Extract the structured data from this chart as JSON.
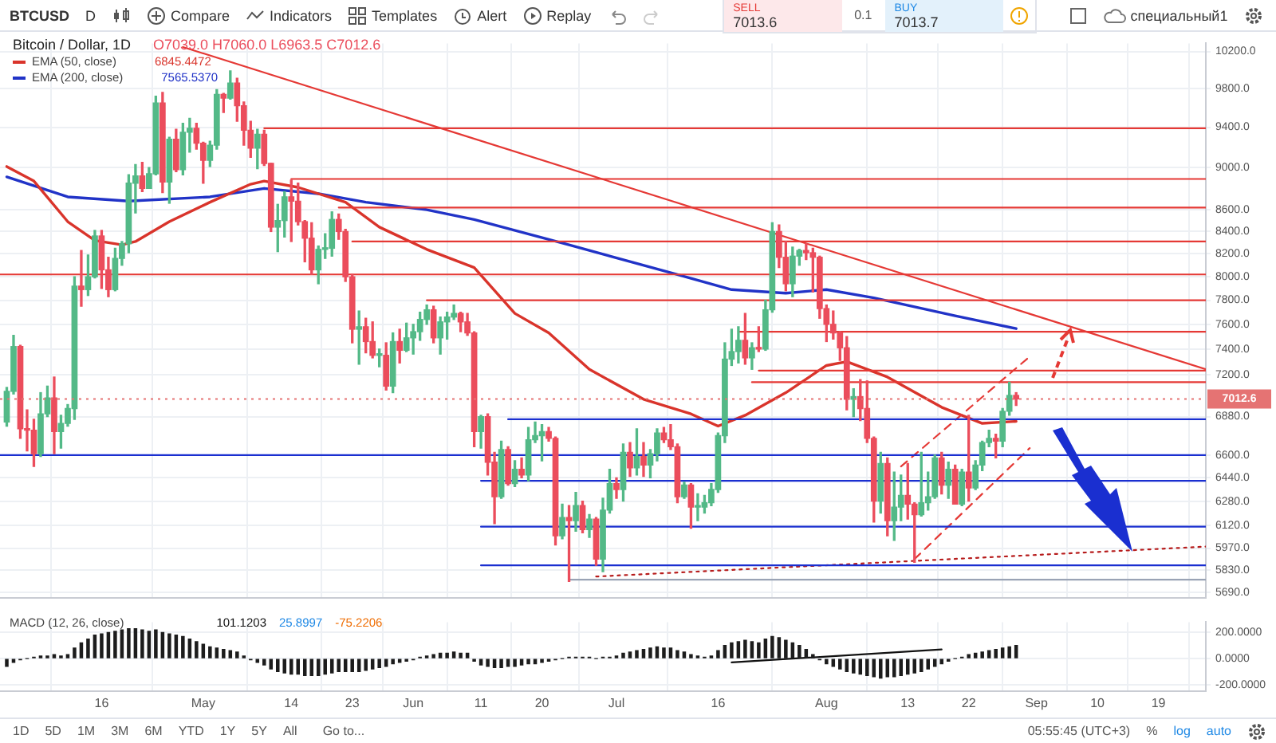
{
  "chart_data": [
    {
      "type": "candlestick",
      "title": "Bitcoin / Dollar, 1D",
      "subtitle": "O7039.0 H7060.0 L6963.5 C7012.6",
      "x": [
        "--04-02",
        "--04-03",
        "--04-04",
        "--04-05",
        "--04-06",
        "--04-07",
        "--04-08",
        "--04-09",
        "--04-10",
        "--04-11",
        "--04-12",
        "--04-13",
        "--04-14",
        "--04-15",
        "--04-16",
        "--04-17",
        "--04-18",
        "--04-19",
        "--04-20",
        "--04-21",
        "--04-22",
        "--04-23",
        "--04-24",
        "--04-25",
        "--04-26",
        "--04-27",
        "--04-28",
        "--04-29",
        "--04-30",
        "--05-01",
        "--05-02",
        "--05-03",
        "--05-04",
        "--05-05",
        "--05-06",
        "--05-07",
        "--05-08",
        "--05-09",
        "--05-10",
        "--05-11",
        "--05-12",
        "--05-13",
        "--05-14",
        "--05-15",
        "--05-16",
        "--05-17",
        "--05-18",
        "--05-19",
        "--05-20",
        "--05-21",
        "--05-22",
        "--05-23",
        "--05-24",
        "--05-25",
        "--05-26",
        "--05-27",
        "--05-28",
        "--05-29",
        "--05-30",
        "--05-31",
        "--06-01",
        "--06-02",
        "--06-03",
        "--06-04",
        "--06-05",
        "--06-06",
        "--06-07",
        "--06-08",
        "--06-09",
        "--06-10",
        "--06-11",
        "--06-12",
        "--06-13",
        "--06-14",
        "--06-15",
        "--06-16",
        "--06-17",
        "--06-18",
        "--06-19",
        "--06-20",
        "--06-21",
        "--06-22",
        "--06-23",
        "--06-24",
        "--06-25",
        "--06-26",
        "--06-27",
        "--06-28",
        "--06-29",
        "--06-30",
        "--07-01",
        "--07-02",
        "--07-03",
        "--07-04",
        "--07-05",
        "--07-06",
        "--07-07",
        "--07-08",
        "--07-09",
        "--07-10",
        "--07-11",
        "--07-12",
        "--07-13",
        "--07-14",
        "--07-15",
        "--07-16",
        "--07-17",
        "--07-18",
        "--07-19",
        "--07-20",
        "--07-21",
        "--07-22",
        "--07-23",
        "--07-24",
        "--07-25",
        "--07-26",
        "--07-27",
        "--07-28",
        "--07-29",
        "--07-30",
        "--07-31",
        "--08-01",
        "--08-02",
        "--08-03",
        "--08-04",
        "--08-05",
        "--08-06",
        "--08-07",
        "--08-08",
        "--08-09",
        "--08-10",
        "--08-11",
        "--08-12",
        "--08-13",
        "--08-14",
        "--08-15",
        "--08-16",
        "--08-17",
        "--08-18",
        "--08-19",
        "--08-20",
        "--08-21",
        "--08-22",
        "--08-23",
        "--08-24",
        "--08-25",
        "--08-26",
        "--08-27",
        "--08-28",
        "--08-29"
      ],
      "ohlc": [
        [
          6840,
          7100,
          6810,
          7070
        ],
        [
          7070,
          7510,
          7050,
          7420
        ],
        [
          7420,
          7430,
          6720,
          6790
        ],
        [
          6790,
          6930,
          6630,
          6780
        ],
        [
          6780,
          6860,
          6520,
          6610
        ],
        [
          6610,
          7060,
          6590,
          6900
        ],
        [
          6900,
          7110,
          6880,
          7020
        ],
        [
          7020,
          7180,
          6610,
          6770
        ],
        [
          6770,
          6890,
          6650,
          6830
        ],
        [
          6830,
          6970,
          6810,
          6940
        ],
        [
          6940,
          8000,
          6860,
          7920
        ],
        [
          7920,
          8230,
          7750,
          7890
        ],
        [
          7890,
          8190,
          7840,
          8000
        ],
        [
          8000,
          8410,
          7990,
          8360
        ],
        [
          8360,
          8410,
          7900,
          8060
        ],
        [
          8060,
          8170,
          7830,
          7890
        ],
        [
          7890,
          8250,
          7880,
          8160
        ],
        [
          8160,
          8310,
          8100,
          8290
        ],
        [
          8290,
          8930,
          8210,
          8850
        ],
        [
          8850,
          9030,
          8570,
          8920
        ],
        [
          8920,
          9050,
          8770,
          8800
        ],
        [
          8800,
          9000,
          8800,
          8940
        ],
        [
          8940,
          9720,
          8930,
          9650
        ],
        [
          9650,
          9760,
          8760,
          8860
        ],
        [
          8860,
          9300,
          8660,
          9280
        ],
        [
          9280,
          9380,
          8960,
          8980
        ],
        [
          8980,
          9440,
          8930,
          9350
        ],
        [
          9350,
          9490,
          9150,
          9390
        ],
        [
          9390,
          9440,
          9180,
          9240
        ],
        [
          9240,
          9250,
          8850,
          9070
        ],
        [
          9070,
          9260,
          9010,
          9220
        ],
        [
          9220,
          9790,
          9180,
          9740
        ],
        [
          9740,
          9750,
          9550,
          9700
        ],
        [
          9700,
          9990,
          9690,
          9860
        ],
        [
          9860,
          9910,
          9460,
          9620
        ],
        [
          9620,
          9660,
          9220,
          9370
        ],
        [
          9370,
          9460,
          9100,
          9190
        ],
        [
          9190,
          9380,
          8990,
          9330
        ],
        [
          9330,
          9370,
          9020,
          9040
        ],
        [
          9040,
          9040,
          8400,
          8440
        ],
        [
          8440,
          8650,
          8220,
          8500
        ],
        [
          8500,
          8770,
          8350,
          8720
        ],
        [
          8720,
          8880,
          8310,
          8680
        ],
        [
          8680,
          8850,
          8460,
          8490
        ],
        [
          8490,
          8500,
          8130,
          8340
        ],
        [
          8340,
          8480,
          8020,
          8060
        ],
        [
          8060,
          8270,
          7940,
          8240
        ],
        [
          8240,
          8380,
          8160,
          8250
        ],
        [
          8250,
          8580,
          8180,
          8510
        ],
        [
          8510,
          8560,
          8330,
          8400
        ],
        [
          8400,
          8420,
          7960,
          8000
        ],
        [
          8000,
          8020,
          7450,
          7560
        ],
        [
          7560,
          7710,
          7280,
          7580
        ],
        [
          7580,
          7650,
          7370,
          7460
        ],
        [
          7460,
          7620,
          7330,
          7350
        ],
        [
          7350,
          7400,
          7260,
          7350
        ],
        [
          7350,
          7450,
          7080,
          7110
        ],
        [
          7110,
          7530,
          7060,
          7460
        ],
        [
          7460,
          7560,
          7290,
          7390
        ],
        [
          7390,
          7610,
          7380,
          7490
        ],
        [
          7490,
          7600,
          7360,
          7540
        ],
        [
          7540,
          7700,
          7470,
          7640
        ],
        [
          7640,
          7760,
          7600,
          7720
        ],
        [
          7720,
          7750,
          7450,
          7490
        ],
        [
          7490,
          7660,
          7360,
          7620
        ],
        [
          7620,
          7700,
          7480,
          7660
        ],
        [
          7660,
          7760,
          7640,
          7690
        ],
        [
          7690,
          7700,
          7540,
          7620
        ],
        [
          7620,
          7690,
          7510,
          7530
        ],
        [
          7530,
          7540,
          6660,
          6770
        ],
        [
          6770,
          6890,
          6650,
          6880
        ],
        [
          6880,
          6900,
          6460,
          6550
        ],
        [
          6550,
          6620,
          6130,
          6310
        ],
        [
          6310,
          6700,
          6300,
          6640
        ],
        [
          6640,
          6660,
          6390,
          6400
        ],
        [
          6400,
          6560,
          6380,
          6500
        ],
        [
          6500,
          6580,
          6440,
          6460
        ],
        [
          6460,
          6800,
          6420,
          6710
        ],
        [
          6710,
          6840,
          6690,
          6740
        ],
        [
          6740,
          6820,
          6560,
          6770
        ],
        [
          6770,
          6800,
          6700,
          6720
        ],
        [
          6720,
          6730,
          5990,
          6050
        ],
        [
          6050,
          6260,
          6030,
          6170
        ],
        [
          6170,
          6250,
          5760,
          6150
        ],
        [
          6150,
          6340,
          6080,
          6250
        ],
        [
          6250,
          6280,
          6070,
          6090
        ],
        [
          6090,
          6190,
          6040,
          6160
        ],
        [
          6160,
          6170,
          5860,
          5900
        ],
        [
          5900,
          6300,
          5820,
          6220
        ],
        [
          6220,
          6500,
          6200,
          6400
        ],
        [
          6400,
          6440,
          6300,
          6360
        ],
        [
          6360,
          6680,
          6280,
          6620
        ],
        [
          6620,
          6690,
          6450,
          6510
        ],
        [
          6510,
          6790,
          6460,
          6590
        ],
        [
          6590,
          6690,
          6450,
          6530
        ],
        [
          6530,
          6640,
          6440,
          6610
        ],
        [
          6610,
          6790,
          6560,
          6760
        ],
        [
          6760,
          6800,
          6690,
          6710
        ],
        [
          6710,
          6820,
          6640,
          6660
        ],
        [
          6660,
          6680,
          6270,
          6310
        ],
        [
          6310,
          6410,
          6300,
          6390
        ],
        [
          6390,
          6400,
          6100,
          6240
        ],
        [
          6240,
          6330,
          6150,
          6240
        ],
        [
          6240,
          6320,
          6200,
          6270
        ],
        [
          6270,
          6400,
          6250,
          6360
        ],
        [
          6360,
          6760,
          6340,
          6740
        ],
        [
          6740,
          7450,
          6690,
          7320
        ],
        [
          7320,
          7560,
          7270,
          7380
        ],
        [
          7380,
          7580,
          7290,
          7470
        ],
        [
          7470,
          7690,
          7280,
          7330
        ],
        [
          7330,
          7450,
          7240,
          7410
        ],
        [
          7410,
          7580,
          7380,
          7400
        ],
        [
          7400,
          7800,
          7390,
          7720
        ],
        [
          7720,
          8480,
          7700,
          8400
        ],
        [
          8400,
          8460,
          8080,
          8170
        ],
        [
          8170,
          8310,
          7880,
          7940
        ],
        [
          7940,
          8260,
          7830,
          8180
        ],
        [
          8180,
          8240,
          8100,
          8230
        ],
        [
          8230,
          8290,
          8150,
          8210
        ],
        [
          8210,
          8250,
          7870,
          8170
        ],
        [
          8170,
          8180,
          7650,
          7730
        ],
        [
          7730,
          7760,
          7460,
          7600
        ],
        [
          7600,
          7710,
          7480,
          7530
        ],
        [
          7530,
          7540,
          7310,
          7410
        ],
        [
          7410,
          7500,
          6930,
          7010
        ],
        [
          7010,
          7090,
          6880,
          7030
        ],
        [
          7030,
          7160,
          6850,
          6940
        ],
        [
          6940,
          7150,
          6690,
          6720
        ],
        [
          6720,
          6730,
          6140,
          6280
        ],
        [
          6280,
          6620,
          6200,
          6540
        ],
        [
          6540,
          6580,
          6050,
          6150
        ],
        [
          6150,
          6480,
          6020,
          6240
        ],
        [
          6240,
          6460,
          6150,
          6320
        ],
        [
          6320,
          6540,
          6160,
          6260
        ],
        [
          6260,
          6270,
          5880,
          6190
        ],
        [
          6190,
          6620,
          6180,
          6270
        ],
        [
          6270,
          6480,
          6220,
          6310
        ],
        [
          6310,
          6600,
          6300,
          6580
        ],
        [
          6580,
          6620,
          6330,
          6390
        ],
        [
          6390,
          6550,
          6300,
          6500
        ],
        [
          6500,
          6530,
          6260,
          6260
        ],
        [
          6260,
          6500,
          6250,
          6480
        ],
        [
          6480,
          6890,
          6280,
          6370
        ],
        [
          6370,
          6560,
          6360,
          6530
        ],
        [
          6530,
          6700,
          6490,
          6690
        ],
        [
          6690,
          6780,
          6660,
          6720
        ],
        [
          6720,
          6750,
          6580,
          6700
        ],
        [
          6700,
          6940,
          6660,
          6920
        ],
        [
          6920,
          7140,
          6890,
          7039
        ],
        [
          7039,
          7060,
          6963.5,
          7012.6
        ]
      ],
      "series": [
        {
          "type": "line",
          "x": [
            "--04-01",
            "--09-26"
          ],
          "values": [
            8020,
            8020
          ],
          "color": "#e53935"
        },
        {
          "type": "line",
          "x": [
            "--05-10",
            "--09-26"
          ],
          "values": [
            9390,
            9390
          ],
          "color": "#e53935"
        },
        {
          "type": "line",
          "x": [
            "--05-14",
            "--09-26"
          ],
          "values": [
            8890,
            8890
          ],
          "color": "#e53935"
        },
        {
          "type": "line",
          "x": [
            "--05-21",
            "--09-26"
          ],
          "values": [
            8620,
            8620
          ],
          "color": "#e53935"
        },
        {
          "type": "line",
          "x": [
            "--05-23",
            "--09-26"
          ],
          "values": [
            8310,
            8310
          ],
          "color": "#e53935"
        },
        {
          "type": "line",
          "x": [
            "--06-03",
            "--09-26"
          ],
          "values": [
            7800,
            7800
          ],
          "color": "#e53935"
        },
        {
          "type": "line",
          "x": [
            "--07-19",
            "--09-26"
          ],
          "values": [
            7540,
            7540
          ],
          "color": "#e53935"
        },
        {
          "type": "line",
          "x": [
            "--07-22",
            "--09-26"
          ],
          "values": [
            7230,
            7230
          ],
          "color": "#e53935"
        },
        {
          "type": "line",
          "x": [
            "--07-21",
            "--09-26"
          ],
          "values": [
            7140,
            7140
          ],
          "color": "#e53935"
        },
        {
          "type": "line",
          "x": [
            "--06-15",
            "--09-26"
          ],
          "values": [
            6860,
            6860
          ],
          "color": "#1a2fd0"
        },
        {
          "type": "line",
          "x": [
            "--04-01",
            "--09-26"
          ],
          "values": [
            6600,
            6600
          ],
          "color": "#1a2fd0"
        },
        {
          "type": "line",
          "x": [
            "--06-11",
            "--09-26"
          ],
          "values": [
            6420,
            6420
          ],
          "color": "#1a2fd0"
        },
        {
          "type": "line",
          "x": [
            "--06-11",
            "--09-26"
          ],
          "values": [
            6110,
            6110
          ],
          "color": "#1a2fd0"
        },
        {
          "type": "line",
          "x": [
            "--06-11",
            "--09-26"
          ],
          "values": [
            5860,
            5860
          ],
          "color": "#1a2fd0"
        },
        {
          "type": "line",
          "x": [
            "--06-24",
            "--09-26"
          ],
          "values": [
            5770,
            5770
          ],
          "color": "#9aa3b5"
        },
        {
          "type": "line",
          "x": [
            "--04-28",
            "--09-26"
          ],
          "values": [
            10250,
            7240
          ],
          "color": "#e53935"
        },
        {
          "type": "line",
          "x": [
            "--08-12",
            "--08-31"
          ],
          "values": [
            6520,
            7340
          ],
          "color": "#e53935",
          "line_style": "dashed"
        },
        {
          "type": "line",
          "x": [
            "--08-14",
            "--08-31"
          ],
          "values": [
            5900,
            6650
          ],
          "color": "#e53935",
          "line_style": "dashed"
        },
        {
          "type": "line",
          "x": [
            "--06-28",
            "--09-26"
          ],
          "values": [
            5790,
            5980
          ],
          "color": "#b71c1c",
          "line_style": "dotted"
        },
        {
          "type": "line",
          "name": "EMA (50, close)",
          "color": "#d9342b",
          "x": [
            "--04-02",
            "--04-06",
            "--04-11",
            "--04-15",
            "--04-19",
            "--04-21",
            "--04-26",
            "--05-02",
            "--05-08",
            "--05-10",
            "--05-15",
            "--05-22",
            "--05-27",
            "--06-03",
            "--06-10",
            "--06-16",
            "--06-21",
            "--06-27",
            "--07-05",
            "--07-12",
            "--07-16",
            "--07-20",
            "--07-26",
            "--08-01",
            "--08-04",
            "--08-10",
            "--08-18",
            "--08-24",
            "--08-29"
          ],
          "values": [
            9010,
            8870,
            8490,
            8320,
            8280,
            8310,
            8490,
            8670,
            8840,
            8870,
            8810,
            8670,
            8440,
            8240,
            8080,
            7690,
            7530,
            7240,
            7010,
            6900,
            6810,
            6890,
            7060,
            7270,
            7300,
            7180,
            6950,
            6830,
            6845
          ]
        },
        {
          "type": "line",
          "name": "EMA (200, close)",
          "color": "#2133c7",
          "x": [
            "--04-02",
            "--04-11",
            "--04-20",
            "--05-02",
            "--05-10",
            "--05-18",
            "--05-25",
            "--06-03",
            "--06-10",
            "--06-24",
            "--07-10",
            "--07-18",
            "--07-26",
            "--08-01",
            "--08-08",
            "--08-20",
            "--08-29"
          ],
          "values": [
            8910,
            8720,
            8680,
            8720,
            8800,
            8750,
            8670,
            8600,
            8510,
            8280,
            8020,
            7890,
            7860,
            7890,
            7820,
            7670,
            7565
          ]
        }
      ],
      "xlim": [
        "--04-01",
        "--09-26"
      ],
      "xticks": [
        {
          "value": "--04-16",
          "label": null
        },
        {
          "value": "--05-01",
          "label": null
        },
        {
          "value": "--05-14",
          "label": null
        },
        {
          "value": "--05-23",
          "label": null
        },
        {
          "value": "--06-01",
          "label": null
        },
        {
          "value": "--06-11",
          "label": null
        },
        {
          "value": "--06-20",
          "label": null
        },
        {
          "value": "--07-01",
          "label": null
        },
        {
          "value": "--07-16",
          "label": null
        },
        {
          "value": "--08-01",
          "label": null
        },
        {
          "value": "--08-13",
          "label": null
        },
        {
          "value": "--08-22",
          "label": null
        },
        {
          "value": "--09-01",
          "label": null
        },
        {
          "value": "--09-10",
          "label": null
        },
        {
          "value": "--09-19",
          "label": null
        }
      ],
      "ylim": [
        5660,
        10290
      ],
      "yticks": [
        {
          "value": 10200,
          "label": "10200.0"
        },
        {
          "value": 9800,
          "label": "9800.0"
        },
        {
          "value": 9400,
          "label": "9400.0"
        },
        {
          "value": 9000,
          "label": "9000.0"
        },
        {
          "value": 8600,
          "label": "8600.0"
        },
        {
          "value": 8400,
          "label": "8400.0"
        },
        {
          "value": 8200,
          "label": "8200.0"
        },
        {
          "value": 8000,
          "label": "8000.0"
        },
        {
          "value": 7800,
          "label": "7800.0"
        },
        {
          "value": 7600,
          "label": "7600.0"
        },
        {
          "value": 7400,
          "label": "7400.0"
        },
        {
          "value": 7200,
          "label": "7200.0"
        },
        {
          "value": 6880,
          "label": "6880.0"
        },
        {
          "value": 6600,
          "label": "6600.0"
        },
        {
          "value": 6440,
          "label": "6440.0"
        },
        {
          "value": 6280,
          "label": "6280.0"
        },
        {
          "value": 6120,
          "label": "6120.0"
        },
        {
          "value": 5970,
          "label": "5970.0"
        },
        {
          "value": 5830,
          "label": "5830.0"
        },
        {
          "value": 5690,
          "label": "5690.0"
        }
      ],
      "log": true,
      "grid": true,
      "legend": "top left",
      "tick_labels": "y",
      "ref_lines": [
        {
          "axis": "y",
          "value": 7012.6,
          "label": "7012.6",
          "color": "#e57373",
          "line_style": "dotted"
        }
      ],
      "annotations": [
        "6845.4472",
        "7565.5370",
        "BTCUSD",
        "D",
        "Compare",
        "Indicators",
        "Templates",
        "Alert",
        "Replay",
        "SELL",
        "7013.6",
        "0.1",
        "BUY",
        "7013.7",
        "специальный1"
      ]
    },
    {
      "type": "bar",
      "title": "MACD (12, 26, close)",
      "x": [
        "--04-02",
        "--04-03",
        "--04-04",
        "--04-05",
        "--04-06",
        "--04-07",
        "--04-08",
        "--04-09",
        "--04-10",
        "--04-11",
        "--04-12",
        "--04-13",
        "--04-14",
        "--04-15",
        "--04-16",
        "--04-17",
        "--04-18",
        "--04-19",
        "--04-20",
        "--04-21",
        "--04-22",
        "--04-23",
        "--04-24",
        "--04-25",
        "--04-26",
        "--04-27",
        "--04-28",
        "--04-29",
        "--04-30",
        "--05-01",
        "--05-02",
        "--05-03",
        "--05-04",
        "--05-05",
        "--05-06",
        "--05-07",
        "--05-08",
        "--05-09",
        "--05-10",
        "--05-11",
        "--05-12",
        "--05-13",
        "--05-14",
        "--05-15",
        "--05-16",
        "--05-17",
        "--05-18",
        "--05-19",
        "--05-20",
        "--05-21",
        "--05-22",
        "--05-23",
        "--05-24",
        "--05-25",
        "--05-26",
        "--05-27",
        "--05-28",
        "--05-29",
        "--05-30",
        "--05-31",
        "--06-01",
        "--06-02",
        "--06-03",
        "--06-04",
        "--06-05",
        "--06-06",
        "--06-07",
        "--06-08",
        "--06-09",
        "--06-10",
        "--06-11",
        "--06-12",
        "--06-13",
        "--06-14",
        "--06-15",
        "--06-16",
        "--06-17",
        "--06-18",
        "--06-19",
        "--06-20",
        "--06-21",
        "--06-22",
        "--06-23",
        "--06-24",
        "--06-25",
        "--06-26",
        "--06-27",
        "--06-28",
        "--06-29",
        "--06-30",
        "--07-01",
        "--07-02",
        "--07-03",
        "--07-04",
        "--07-05",
        "--07-06",
        "--07-07",
        "--07-08",
        "--07-09",
        "--07-10",
        "--07-11",
        "--07-12",
        "--07-13",
        "--07-14",
        "--07-15",
        "--07-16",
        "--07-17",
        "--07-18",
        "--07-19",
        "--07-20",
        "--07-21",
        "--07-22",
        "--07-23",
        "--07-24",
        "--07-25",
        "--07-26",
        "--07-27",
        "--07-28",
        "--07-29",
        "--07-30",
        "--07-31",
        "--08-01",
        "--08-02",
        "--08-03",
        "--08-04",
        "--08-05",
        "--08-06",
        "--08-07",
        "--08-08",
        "--08-09",
        "--08-10",
        "--08-11",
        "--08-12",
        "--08-13",
        "--08-14",
        "--08-15",
        "--08-16",
        "--08-17",
        "--08-18",
        "--08-19",
        "--08-20",
        "--08-21",
        "--08-22",
        "--08-23",
        "--08-24",
        "--08-25",
        "--08-26",
        "--08-27",
        "--08-28",
        "--08-29"
      ],
      "series": [
        {
          "type": "bar",
          "color": "#1c1c1c",
          "values": [
            -60,
            -30,
            -10,
            0,
            10,
            20,
            20,
            30,
            20,
            30,
            80,
            120,
            150,
            180,
            190,
            200,
            210,
            220,
            230,
            230,
            220,
            210,
            220,
            200,
            190,
            180,
            170,
            150,
            130,
            110,
            90,
            80,
            70,
            60,
            50,
            20,
            -10,
            -30,
            -50,
            -80,
            -100,
            -110,
            -120,
            -120,
            -130,
            -130,
            -130,
            -120,
            -110,
            -100,
            -100,
            -100,
            -100,
            -90,
            -80,
            -70,
            -60,
            -40,
            -30,
            -20,
            -10,
            10,
            20,
            30,
            40,
            40,
            50,
            40,
            40,
            -20,
            -50,
            -60,
            -70,
            -70,
            -60,
            -60,
            -50,
            -40,
            -40,
            -30,
            -20,
            -10,
            0,
            10,
            10,
            10,
            10,
            0,
            10,
            10,
            20,
            40,
            50,
            60,
            70,
            80,
            90,
            80,
            80,
            60,
            50,
            30,
            20,
            10,
            20,
            60,
            100,
            120,
            130,
            140,
            130,
            120,
            150,
            170,
            160,
            140,
            120,
            100,
            70,
            30,
            -10,
            -40,
            -60,
            -80,
            -100,
            -110,
            -120,
            -130,
            -140,
            -150,
            -140,
            -140,
            -130,
            -120,
            -110,
            -100,
            -80,
            -60,
            -40,
            -20,
            0,
            10,
            30,
            40,
            50,
            60,
            70,
            80,
            90,
            100
          ]
        },
        {
          "type": "line",
          "color": "#111111",
          "x": [
            "--07-18",
            "--08-18"
          ],
          "values": [
            -30,
            70
          ]
        }
      ],
      "xlim": [
        "--04-01",
        "--09-26"
      ],
      "xticks": [
        {
          "value": "--04-16",
          "label": "16"
        },
        {
          "value": "--05-01",
          "label": "May"
        },
        {
          "value": "--05-14",
          "label": "14"
        },
        {
          "value": "--05-23",
          "label": "23"
        },
        {
          "value": "--06-01",
          "label": "Jun"
        },
        {
          "value": "--06-11",
          "label": "11"
        },
        {
          "value": "--06-20",
          "label": "20"
        },
        {
          "value": "--07-01",
          "label": "Jul"
        },
        {
          "value": "--07-16",
          "label": "16"
        },
        {
          "value": "--08-01",
          "label": "Aug"
        },
        {
          "value": "--08-13",
          "label": "13"
        },
        {
          "value": "--08-22",
          "label": "22"
        },
        {
          "value": "--09-01",
          "label": "Sep"
        },
        {
          "value": "--09-10",
          "label": "10"
        },
        {
          "value": "--09-19",
          "label": "19"
        }
      ],
      "ylim": [
        -250,
        280
      ],
      "yticks": [
        {
          "value": 200,
          "label": "200.0000"
        },
        {
          "value": 0,
          "label": "0.0000"
        },
        {
          "value": -200,
          "label": "-200.0000"
        }
      ],
      "grid": true,
      "annotations": [
        "101.1203",
        "25.8997",
        "-75.2206",
        "1D",
        "5D",
        "1M",
        "3M",
        "6M",
        "YTD",
        "1Y",
        "5Y",
        "All",
        "Go to...",
        "05:55:45 (UTC+3)",
        "%",
        "log",
        "auto"
      ]
    }
  ]
}
